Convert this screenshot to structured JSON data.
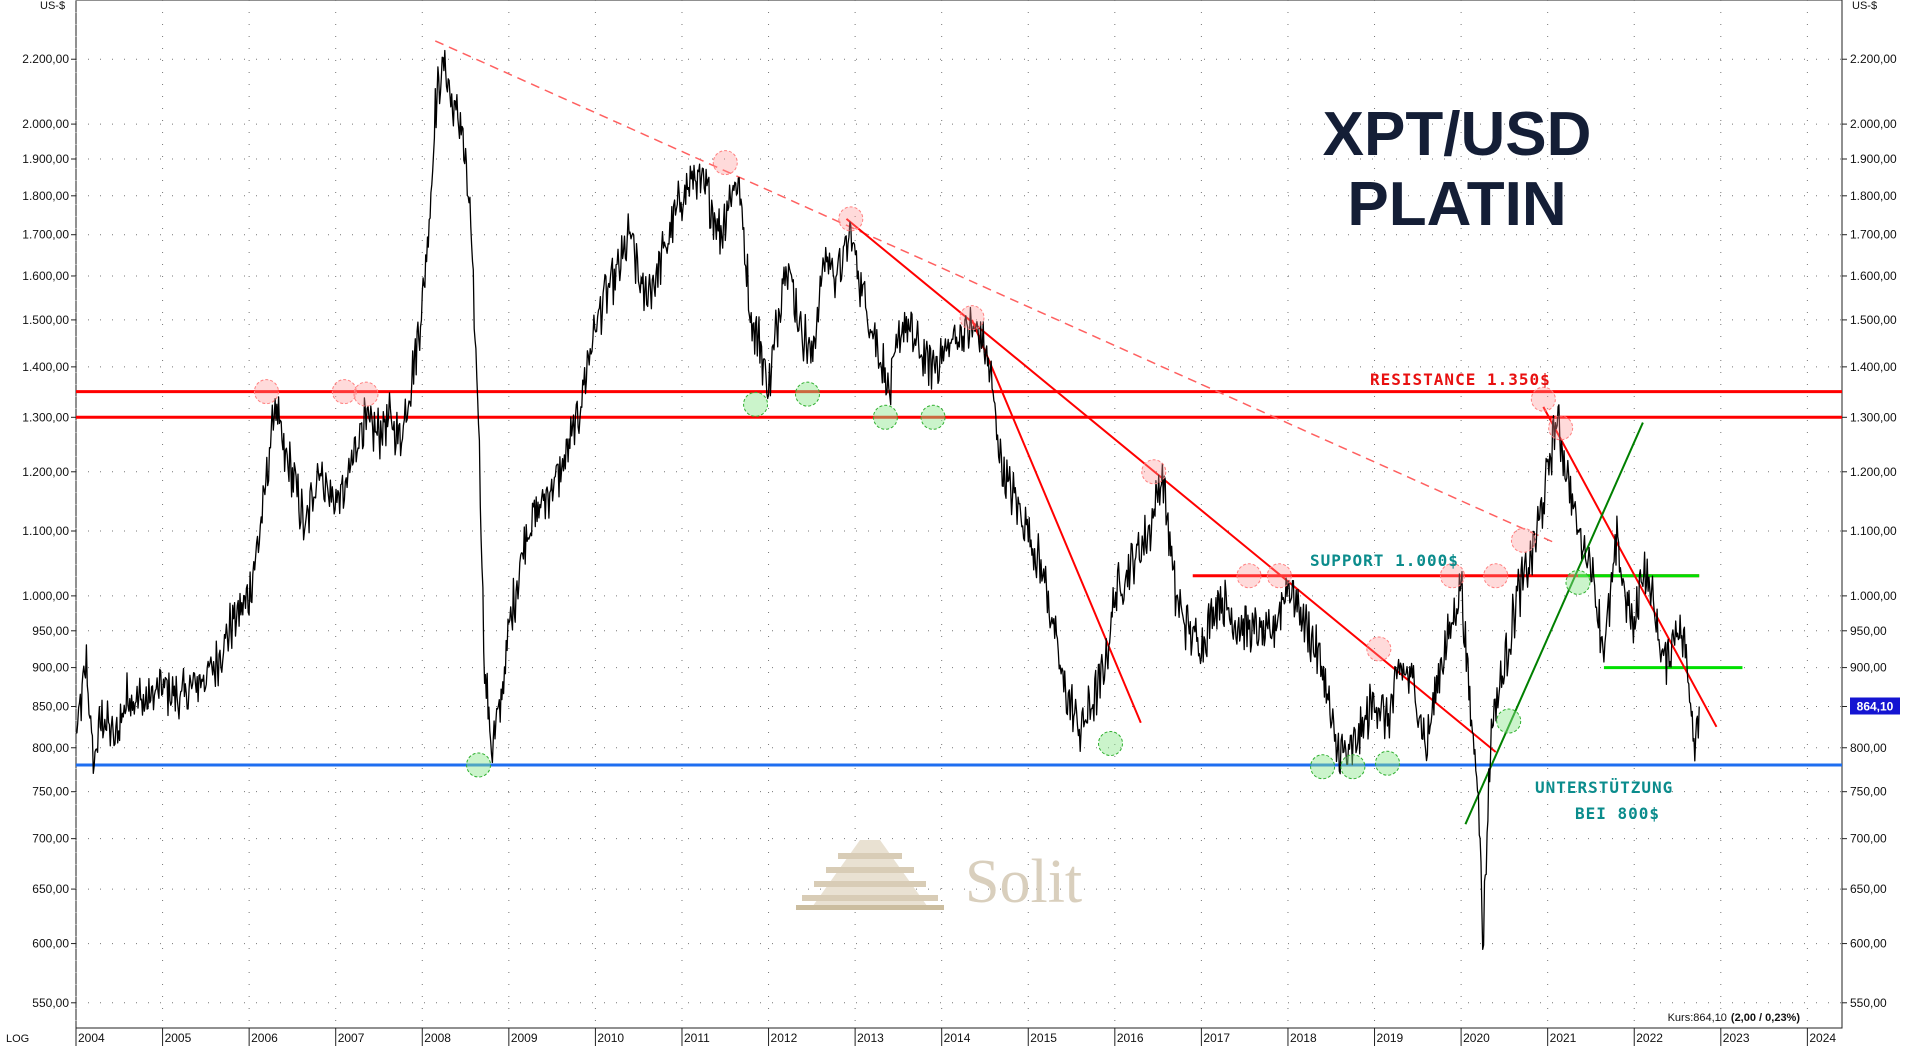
{
  "chart_data": {
    "type": "line",
    "title": "XPT/USD",
    "subtitle": "PLATIN",
    "ylabel": "US-$",
    "ylabel_right": "US-$",
    "scale_label": "LOG",
    "y_scale": "log",
    "ylim": [
      530,
      2400
    ],
    "xlim": [
      2004.0,
      2024.4
    ],
    "y_ticks": [
      {
        "value": 550,
        "label": "550,00"
      },
      {
        "value": 600,
        "label": "600,00"
      },
      {
        "value": 650,
        "label": "650,00"
      },
      {
        "value": 700,
        "label": "700,00"
      },
      {
        "value": 750,
        "label": "750,00"
      },
      {
        "value": 800,
        "label": "800,00"
      },
      {
        "value": 850,
        "label": "850,00"
      },
      {
        "value": 900,
        "label": "900,00"
      },
      {
        "value": 950,
        "label": "950,00"
      },
      {
        "value": 1000,
        "label": "1.000,00"
      },
      {
        "value": 1100,
        "label": "1.100,00"
      },
      {
        "value": 1200,
        "label": "1.200,00"
      },
      {
        "value": 1300,
        "label": "1.300,00"
      },
      {
        "value": 1400,
        "label": "1.400,00"
      },
      {
        "value": 1500,
        "label": "1.500,00"
      },
      {
        "value": 1600,
        "label": "1.600,00"
      },
      {
        "value": 1700,
        "label": "1.700,00"
      },
      {
        "value": 1800,
        "label": "1.800,00"
      },
      {
        "value": 1900,
        "label": "1.900,00"
      },
      {
        "value": 2000,
        "label": "2.000,00"
      },
      {
        "value": 2200,
        "label": "2.200,00"
      }
    ],
    "x_ticks": [
      {
        "value": 2004,
        "label": "2004"
      },
      {
        "value": 2005,
        "label": "2005"
      },
      {
        "value": 2006,
        "label": "2006"
      },
      {
        "value": 2007,
        "label": "2007"
      },
      {
        "value": 2008,
        "label": "2008"
      },
      {
        "value": 2009,
        "label": "2009"
      },
      {
        "value": 2010,
        "label": "2010"
      },
      {
        "value": 2011,
        "label": "2011"
      },
      {
        "value": 2012,
        "label": "2012"
      },
      {
        "value": 2013,
        "label": "2013"
      },
      {
        "value": 2014,
        "label": "2014"
      },
      {
        "value": 2015,
        "label": "2015"
      },
      {
        "value": 2016,
        "label": "2016"
      },
      {
        "value": 2017,
        "label": "2017"
      },
      {
        "value": 2018,
        "label": "2018"
      },
      {
        "value": 2019,
        "label": "2019"
      },
      {
        "value": 2020,
        "label": "2020"
      },
      {
        "value": 2021,
        "label": "2021"
      },
      {
        "value": 2022,
        "label": "2022"
      },
      {
        "value": 2023,
        "label": "2023"
      },
      {
        "value": 2024,
        "label": "2024"
      }
    ],
    "grid": true,
    "series": [
      {
        "values_key": "price",
        "color": "#000000",
        "x": [
          2004.0,
          2004.12,
          2004.2,
          2004.3,
          2004.45,
          2004.6,
          2004.8,
          2005.0,
          2005.2,
          2005.4,
          2005.6,
          2005.8,
          2006.0,
          2006.15,
          2006.3,
          2006.4,
          2006.5,
          2006.65,
          2006.8,
          2006.95,
          2007.1,
          2007.3,
          2007.5,
          2007.6,
          2007.75,
          2007.9,
          2008.0,
          2008.1,
          2008.15,
          2008.25,
          2008.35,
          2008.45,
          2008.55,
          2008.65,
          2008.72,
          2008.8,
          2008.9,
          2009.0,
          2009.2,
          2009.4,
          2009.6,
          2009.8,
          2009.95,
          2010.1,
          2010.25,
          2010.4,
          2010.55,
          2010.7,
          2010.85,
          2011.0,
          2011.15,
          2011.3,
          2011.45,
          2011.55,
          2011.65,
          2011.8,
          2011.9,
          2012.0,
          2012.2,
          2012.35,
          2012.5,
          2012.65,
          2012.8,
          2012.95,
          2013.1,
          2013.25,
          2013.4,
          2013.55,
          2013.7,
          2013.85,
          2014.0,
          2014.15,
          2014.3,
          2014.45,
          2014.55,
          2014.7,
          2014.85,
          2015.0,
          2015.2,
          2015.4,
          2015.6,
          2015.8,
          2015.9,
          2016.0,
          2016.2,
          2016.4,
          2016.55,
          2016.7,
          2016.85,
          2017.0,
          2017.2,
          2017.4,
          2017.6,
          2017.8,
          2018.0,
          2018.2,
          2018.4,
          2018.55,
          2018.7,
          2018.85,
          2019.0,
          2019.15,
          2019.3,
          2019.45,
          2019.6,
          2019.75,
          2019.9,
          2020.0,
          2020.1,
          2020.2,
          2020.25,
          2020.35,
          2020.5,
          2020.65,
          2020.8,
          2020.95,
          2021.1,
          2021.2,
          2021.35,
          2021.5,
          2021.65,
          2021.8,
          2021.9,
          2022.0,
          2022.1,
          2022.2,
          2022.35,
          2022.5,
          2022.6,
          2022.7,
          2022.75
        ],
        "y": [
          810,
          905,
          780,
          840,
          810,
          865,
          855,
          875,
          860,
          880,
          900,
          960,
          1000,
          1120,
          1330,
          1230,
          1200,
          1100,
          1210,
          1150,
          1160,
          1290,
          1270,
          1300,
          1260,
          1400,
          1530,
          1800,
          2050,
          2200,
          2050,
          2000,
          1750,
          1300,
          900,
          800,
          850,
          950,
          1100,
          1150,
          1200,
          1300,
          1450,
          1550,
          1600,
          1700,
          1550,
          1600,
          1700,
          1800,
          1850,
          1800,
          1700,
          1800,
          1850,
          1500,
          1450,
          1350,
          1650,
          1500,
          1420,
          1650,
          1600,
          1700,
          1550,
          1450,
          1350,
          1500,
          1450,
          1400,
          1420,
          1460,
          1480,
          1470,
          1400,
          1200,
          1150,
          1100,
          1020,
          880,
          820,
          870,
          910,
          1000,
          1050,
          1100,
          1200,
          1000,
          950,
          930,
          1000,
          960,
          950,
          940,
          1020,
          960,
          900,
          800,
          790,
          820,
          860,
          830,
          900,
          880,
          800,
          900,
          960,
          1020,
          850,
          760,
          600,
          830,
          900,
          1000,
          1050,
          1150,
          1300,
          1220,
          1100,
          1050,
          920,
          1080,
          1000,
          950,
          1050,
          1000,
          900,
          960,
          920,
          810,
          850
        ]
      }
    ],
    "reference_lines": [
      {
        "type": "horizontal",
        "y": 1350,
        "color": "#ff0000"
      },
      {
        "type": "horizontal",
        "y": 1300,
        "color": "#ff0000"
      },
      {
        "type": "horizontal",
        "y": 780,
        "color": "#1e6ef0"
      },
      {
        "type": "segment",
        "x1": 2016.9,
        "y1": 1030,
        "x2": 2022.75,
        "y2": 1030,
        "color": "#ff0000"
      },
      {
        "type": "segment",
        "x1": 2021.35,
        "y1": 1030,
        "x2": 2022.75,
        "y2": 1030,
        "color": "#00e000"
      },
      {
        "type": "segment",
        "x1": 2021.65,
        "y1": 900,
        "x2": 2023.25,
        "y2": 900,
        "color": "#00e000"
      },
      {
        "type": "trend",
        "x1": 2008.15,
        "y1": 2260,
        "x2": 2021.1,
        "y2": 1080,
        "color": "#ff6060",
        "dashed": true
      },
      {
        "type": "trend",
        "x1": 2012.9,
        "y1": 1740,
        "x2": 2020.4,
        "y2": 795,
        "color": "#ff0000"
      },
      {
        "type": "trend",
        "x1": 2014.35,
        "y1": 1500,
        "x2": 2016.3,
        "y2": 830,
        "color": "#ff0000"
      },
      {
        "type": "trend",
        "x1": 2020.95,
        "y1": 1320,
        "x2": 2022.95,
        "y2": 825,
        "color": "#ff0000"
      },
      {
        "type": "trend",
        "x1": 2020.05,
        "y1": 715,
        "x2": 2022.1,
        "y2": 1290,
        "color": "#008000"
      }
    ],
    "markers": [
      {
        "x": 2006.2,
        "y": 1350,
        "color": "red"
      },
      {
        "x": 2007.1,
        "y": 1350,
        "color": "red"
      },
      {
        "x": 2007.35,
        "y": 1345,
        "color": "red"
      },
      {
        "x": 2011.5,
        "y": 1890,
        "color": "red"
      },
      {
        "x": 2012.95,
        "y": 1740,
        "color": "red"
      },
      {
        "x": 2014.35,
        "y": 1505,
        "color": "red"
      },
      {
        "x": 2016.45,
        "y": 1200,
        "color": "red"
      },
      {
        "x": 2017.55,
        "y": 1030,
        "color": "red"
      },
      {
        "x": 2017.9,
        "y": 1030,
        "color": "red"
      },
      {
        "x": 2019.05,
        "y": 925,
        "color": "red"
      },
      {
        "x": 2019.9,
        "y": 1030,
        "color": "red"
      },
      {
        "x": 2020.4,
        "y": 1030,
        "color": "red"
      },
      {
        "x": 2020.72,
        "y": 1085,
        "color": "red"
      },
      {
        "x": 2020.95,
        "y": 1335,
        "color": "red"
      },
      {
        "x": 2021.15,
        "y": 1280,
        "color": "red"
      },
      {
        "x": 2011.85,
        "y": 1325,
        "color": "green"
      },
      {
        "x": 2012.45,
        "y": 1345,
        "color": "green"
      },
      {
        "x": 2013.35,
        "y": 1300,
        "color": "green"
      },
      {
        "x": 2013.9,
        "y": 1300,
        "color": "green"
      },
      {
        "x": 2008.65,
        "y": 780,
        "color": "green"
      },
      {
        "x": 2015.95,
        "y": 805,
        "color": "green"
      },
      {
        "x": 2018.4,
        "y": 778,
        "color": "green"
      },
      {
        "x": 2018.75,
        "y": 778,
        "color": "green"
      },
      {
        "x": 2019.15,
        "y": 782,
        "color": "green"
      },
      {
        "x": 2020.55,
        "y": 832,
        "color": "green"
      },
      {
        "x": 2021.35,
        "y": 1020,
        "color": "green"
      }
    ],
    "annotations": [
      {
        "text": "RESISTANCE 1.350$",
        "color": "#e81010"
      },
      {
        "text": "SUPPORT 1.000$",
        "color": "#0b8c8c"
      },
      {
        "text": "UNTERSTÜTZUNG",
        "color": "#0b8c8c"
      },
      {
        "text": "BEI 800$",
        "color": "#0b8c8c"
      }
    ],
    "last_price_label": "864,10",
    "footer_text": "Kurs:864,10",
    "footer_bold": "(2,00 / 0,23%)"
  },
  "watermark": "Solit",
  "colors": {
    "resistance": "#ff0000",
    "support_green": "#00e000",
    "trend_green": "#008000",
    "floor_blue": "#1e6ef0",
    "price_badge": "#1414d2"
  }
}
